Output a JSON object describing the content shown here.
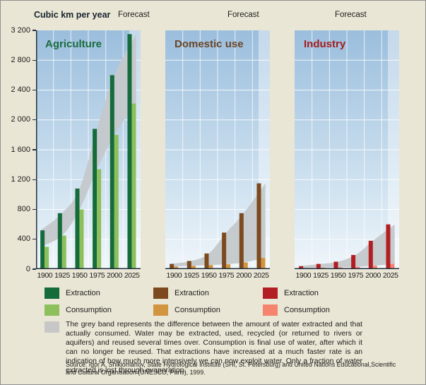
{
  "header": {
    "unit_label": "Cubic km per year",
    "forecast_label": "Forecast"
  },
  "y_axis": {
    "max": 3200,
    "step": 400,
    "tick_labels": [
      "3 200",
      "2 800",
      "2 400",
      "2 000",
      "1 600",
      "1 200",
      "800",
      "400",
      "0"
    ]
  },
  "chart_data": [
    {
      "type": "bar",
      "title": "Agriculture",
      "title_color": "#1a6c3d",
      "categories": [
        "1900",
        "1925",
        "1950",
        "1975",
        "2000",
        "2025"
      ],
      "ylim": [
        0,
        3200
      ],
      "series": [
        {
          "name": "Extraction",
          "color": "#156b39",
          "values": [
            520,
            750,
            1080,
            1880,
            2600,
            3150
          ]
        },
        {
          "name": "Consumption",
          "color": "#8dc05c",
          "values": [
            300,
            450,
            800,
            1340,
            1800,
            2220
          ]
        }
      ]
    },
    {
      "type": "bar",
      "title": "Domestic use",
      "title_color": "#6b4526",
      "categories": [
        "1900",
        "1925",
        "1950",
        "1975",
        "2000",
        "2025"
      ],
      "ylim": [
        0,
        3200
      ],
      "series": [
        {
          "name": "Extraction",
          "color": "#7c4a1e",
          "values": [
            70,
            110,
            210,
            490,
            750,
            1150
          ]
        },
        {
          "name": "Consumption",
          "color": "#d2953f",
          "values": [
            35,
            45,
            55,
            65,
            90,
            150
          ]
        }
      ]
    },
    {
      "type": "bar",
      "title": "Industry",
      "title_color": "#a31d1d",
      "categories": [
        "1900",
        "1925",
        "1950",
        "1975",
        "2000",
        "2025"
      ],
      "ylim": [
        0,
        3200
      ],
      "series": [
        {
          "name": "Extraction",
          "color": "#b21e23",
          "values": [
            40,
            70,
            100,
            190,
            380,
            600
          ]
        },
        {
          "name": "Consumption",
          "color": "#f5846f",
          "values": [
            10,
            20,
            25,
            30,
            45,
            70
          ]
        }
      ]
    }
  ],
  "legend": {
    "groups": [
      {
        "extraction_label": "Extraction",
        "extraction_color": "#156b39",
        "consumption_label": "Consumption",
        "consumption_color": "#8dc05c"
      },
      {
        "extraction_label": "Extraction",
        "extraction_color": "#7c4a1e",
        "consumption_label": "Consumption",
        "consumption_color": "#d2953f"
      },
      {
        "extraction_label": "Extraction",
        "extraction_color": "#b21e23",
        "consumption_label": "Consumption",
        "consumption_color": "#f5846f"
      }
    ],
    "band_swatch_color": "#c7c7c7",
    "band_note": "The grey band represents the difference between the amount of water extracted and that actually consumed. Water may be extracted, used, recycled (or returned to rivers or aquifers) and reused several times over. Consumption is final use of water, after which it can no longer be reused. That extractions have increased at a much faster rate is an indication of how much more intensively we can now exploit water. Only a fraction of water extracted is lost through evaporation."
  },
  "source": "Source: Igor A. Shiklomanov, State Hydrological Institute (SHI, St. Petersburg) and United Nations Educational,Scientific and Cultural Organisation (UNESCO, Paris), 1999.",
  "colors": {
    "background": "#eae6d5",
    "axis": "#223140",
    "grid": "#ffffff",
    "grey_band": "#c4c8cb",
    "forecast_band_overlay": "rgba(255,255,255,0.42)",
    "panel_gradient_top": "#9bbedd",
    "panel_gradient_bottom": "#f0f6fa"
  }
}
